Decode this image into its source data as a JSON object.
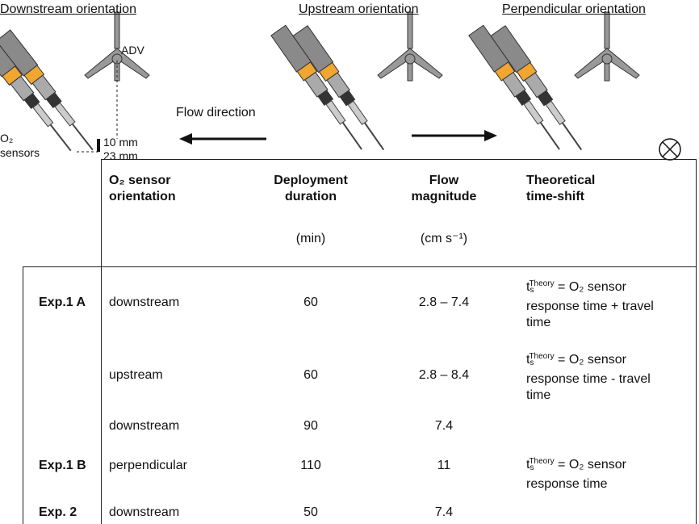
{
  "figure": {
    "panels": [
      "Downstream orientation",
      "Upstream orientation",
      "Perpendicular orientation"
    ],
    "adv_label": "ADV",
    "flow_label": "Flow direction",
    "sensor_label": "O₂ sensors",
    "dist_1": "10 mm",
    "dist_2": "23 mm"
  },
  "table": {
    "headers": [
      {
        "title": "O₂ sensor orientation"
      },
      {
        "title": "Deployment duration",
        "unit": "(min)"
      },
      {
        "title": "Flow magnitude",
        "unit": "(cm s⁻¹)"
      },
      {
        "title": "Theoretical time-shift"
      }
    ],
    "rows": [
      {
        "label": "Exp.1 A",
        "orientation": "downstream",
        "duration": 60,
        "flow": "2.8 – 7.4",
        "shift": {
          "t": "t",
          "sub": "s",
          "sup": "Theory",
          "rest": " = O₂ sensor response time + travel time"
        }
      },
      {
        "orientation": "upstream",
        "duration": 60,
        "flow": "2.8 – 8.4",
        "shift": {
          "t": "t",
          "sub": "s",
          "sup": "Theory",
          "rest": " = O₂ sensor response time - travel time"
        }
      },
      {
        "orientation": "downstream",
        "duration": 90,
        "flow": "7.4"
      },
      {
        "label": "Exp.1 B",
        "orientation": "perpendicular",
        "duration": 110,
        "flow": "11",
        "shift": {
          "t": "t",
          "sub": "s",
          "sup": "Theory",
          "rest": " = O₂ sensor response time"
        }
      },
      {
        "label": "Exp. 2",
        "orientation": "downstream",
        "duration": 50,
        "flow": "7.4"
      }
    ]
  }
}
